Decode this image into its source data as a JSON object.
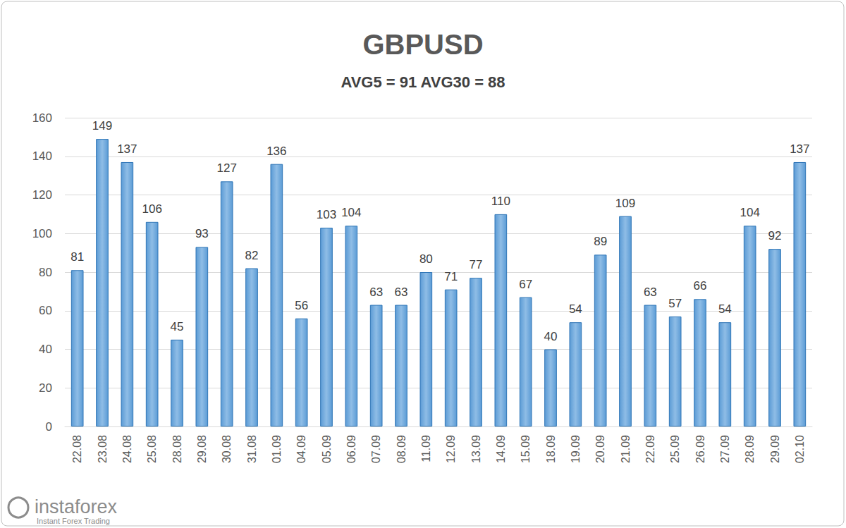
{
  "chart_data": {
    "type": "bar",
    "title": "GBPUSD",
    "subtitle": "AVG5 = 91 AVG30 = 88",
    "categories": [
      "22.08",
      "23.08",
      "24.08",
      "25.08",
      "28.08",
      "29.08",
      "30.08",
      "31.08",
      "01.09",
      "04.09",
      "05.09",
      "06.09",
      "07.09",
      "08.09",
      "11.09",
      "12.09",
      "13.09",
      "14.09",
      "15.09",
      "18.09",
      "19.09",
      "20.09",
      "21.09",
      "22.09",
      "25.09",
      "26.09",
      "27.09",
      "28.09",
      "29.09",
      "02.10"
    ],
    "values": [
      81,
      149,
      137,
      106,
      45,
      93,
      127,
      82,
      136,
      56,
      103,
      104,
      63,
      63,
      80,
      71,
      77,
      110,
      67,
      40,
      54,
      89,
      109,
      63,
      57,
      66,
      54,
      104,
      92,
      137
    ],
    "color": "#5b9bd5",
    "ylim": [
      0,
      160
    ],
    "yticks": [
      0,
      20,
      40,
      60,
      80,
      100,
      120,
      140,
      160
    ],
    "grid": true,
    "data_labels": true,
    "annotations": [
      "instaforex",
      "Instant Forex Trading"
    ]
  }
}
